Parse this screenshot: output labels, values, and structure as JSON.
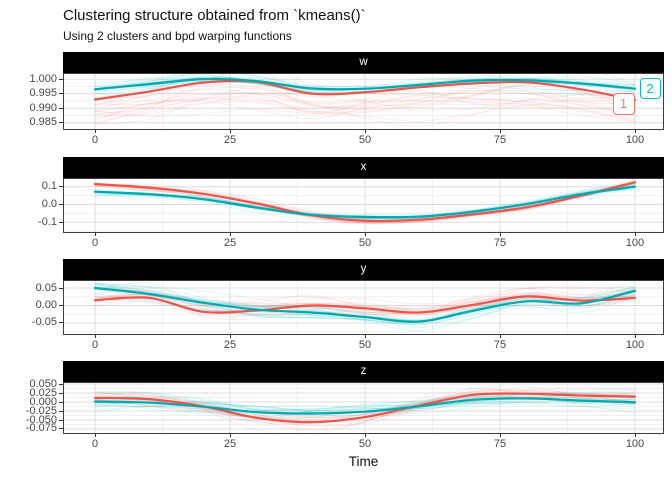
{
  "chart_data": {
    "type": "line",
    "title": "Clustering structure obtained from `kmeans()`",
    "subtitle": "Using 2 clusters and bpd warping functions",
    "xlabel": "Time",
    "x_range": [
      -5.93,
      105.37
    ],
    "x_ticks": [
      {
        "label": "0",
        "value": 0
      },
      {
        "label": "25",
        "value": 25
      },
      {
        "label": "50",
        "value": 50
      },
      {
        "label": "75",
        "value": 75
      },
      {
        "label": "100",
        "value": 100
      }
    ],
    "x_minor_ticks": [
      12.5,
      37.5,
      62.5,
      87.5
    ],
    "grid": {
      "major_on": true,
      "minor_on": true
    },
    "legend": [
      {
        "label": "1",
        "color": "#F8766D"
      },
      {
        "label": "2",
        "color": "#00BFC4"
      }
    ],
    "n_member_curves_estimate": 18,
    "x": [
      0,
      10,
      20,
      30,
      40,
      50,
      60,
      70,
      80,
      90,
      100
    ],
    "facets": [
      {
        "name": "w",
        "y_range": [
          0.9825,
          1.0021
        ],
        "y_ticks": [
          {
            "label": "1.000",
            "value": 1.0
          },
          {
            "label": "0.995",
            "value": 0.995
          },
          {
            "label": "0.990",
            "value": 0.99
          },
          {
            "label": "0.985",
            "value": 0.985
          }
        ],
        "series": [
          {
            "cluster": "1",
            "spread": 0.0042,
            "mean": [
              0.993,
              0.9957,
              0.9988,
              0.999,
              0.995,
              0.9955,
              0.9972,
              0.9985,
              0.9989,
              0.9965,
              0.9928
            ]
          },
          {
            "cluster": "2",
            "spread": 0.0018,
            "mean": [
              0.9965,
              0.9983,
              1.0,
              0.9993,
              0.9968,
              0.9967,
              0.998,
              0.9995,
              0.9996,
              0.9985,
              0.9967
            ]
          }
        ]
      },
      {
        "name": "x",
        "y_range": [
          -0.16,
          0.149
        ],
        "y_ticks": [
          {
            "label": "0.1",
            "value": 0.1
          },
          {
            "label": "0.0",
            "value": 0.0
          },
          {
            "label": "-0.1",
            "value": -0.1
          }
        ],
        "series": [
          {
            "cluster": "1",
            "spread": 0.017,
            "mean": [
              0.115,
              0.095,
              0.06,
              0.005,
              -0.06,
              -0.092,
              -0.085,
              -0.055,
              -0.015,
              0.05,
              0.125
            ]
          },
          {
            "cluster": "2",
            "spread": 0.013,
            "mean": [
              0.072,
              0.058,
              0.03,
              -0.018,
              -0.058,
              -0.07,
              -0.068,
              -0.04,
              0.003,
              0.058,
              0.1
            ]
          }
        ]
      },
      {
        "name": "y",
        "y_range": [
          -0.0843,
          0.0729
        ],
        "y_ticks": [
          {
            "label": "0.05",
            "value": 0.05
          },
          {
            "label": "0.00",
            "value": 0.0
          },
          {
            "label": "-0.05",
            "value": -0.05
          }
        ],
        "series": [
          {
            "cluster": "1",
            "spread": 0.021,
            "mean": [
              0.015,
              0.022,
              -0.018,
              -0.014,
              0.0,
              -0.008,
              -0.02,
              0.002,
              0.026,
              0.014,
              0.022
            ]
          },
          {
            "cluster": "2",
            "spread": 0.017,
            "mean": [
              0.05,
              0.033,
              0.008,
              -0.012,
              -0.02,
              -0.033,
              -0.046,
              -0.015,
              0.012,
              0.006,
              0.042
            ]
          }
        ]
      },
      {
        "name": "z",
        "y_range": [
          -0.0889,
          0.0556
        ],
        "y_ticks": [
          {
            "label": "0.050",
            "value": 0.05
          },
          {
            "label": "0.025",
            "value": 0.025
          },
          {
            "label": "0.000",
            "value": 0.0
          },
          {
            "label": "-0.025",
            "value": -0.025
          },
          {
            "label": "-0.050",
            "value": -0.05
          },
          {
            "label": "-0.075",
            "value": -0.075
          }
        ],
        "series": [
          {
            "cluster": "1",
            "spread": 0.023,
            "mean": [
              0.011,
              0.008,
              -0.012,
              -0.044,
              -0.056,
              -0.042,
              -0.01,
              0.02,
              0.023,
              0.018,
              0.015
            ]
          },
          {
            "cluster": "2",
            "spread": 0.019,
            "mean": [
              0.001,
              -0.002,
              -0.013,
              -0.028,
              -0.032,
              -0.027,
              -0.012,
              0.006,
              0.01,
              0.004,
              -0.001
            ]
          }
        ]
      }
    ]
  },
  "colors": {
    "cluster1": "#F8766D",
    "cluster1_mean": "#E8564E",
    "cluster2": "#00BFC4",
    "cluster2_mean": "#00A8AD",
    "strip_bg": "#000000",
    "strip_text": "#FFFFFF",
    "grid_major": "#DCDCDC",
    "grid_minor": "#EFEFEF",
    "panel_border": "#3E3E3E",
    "axis_text": "#474747"
  }
}
